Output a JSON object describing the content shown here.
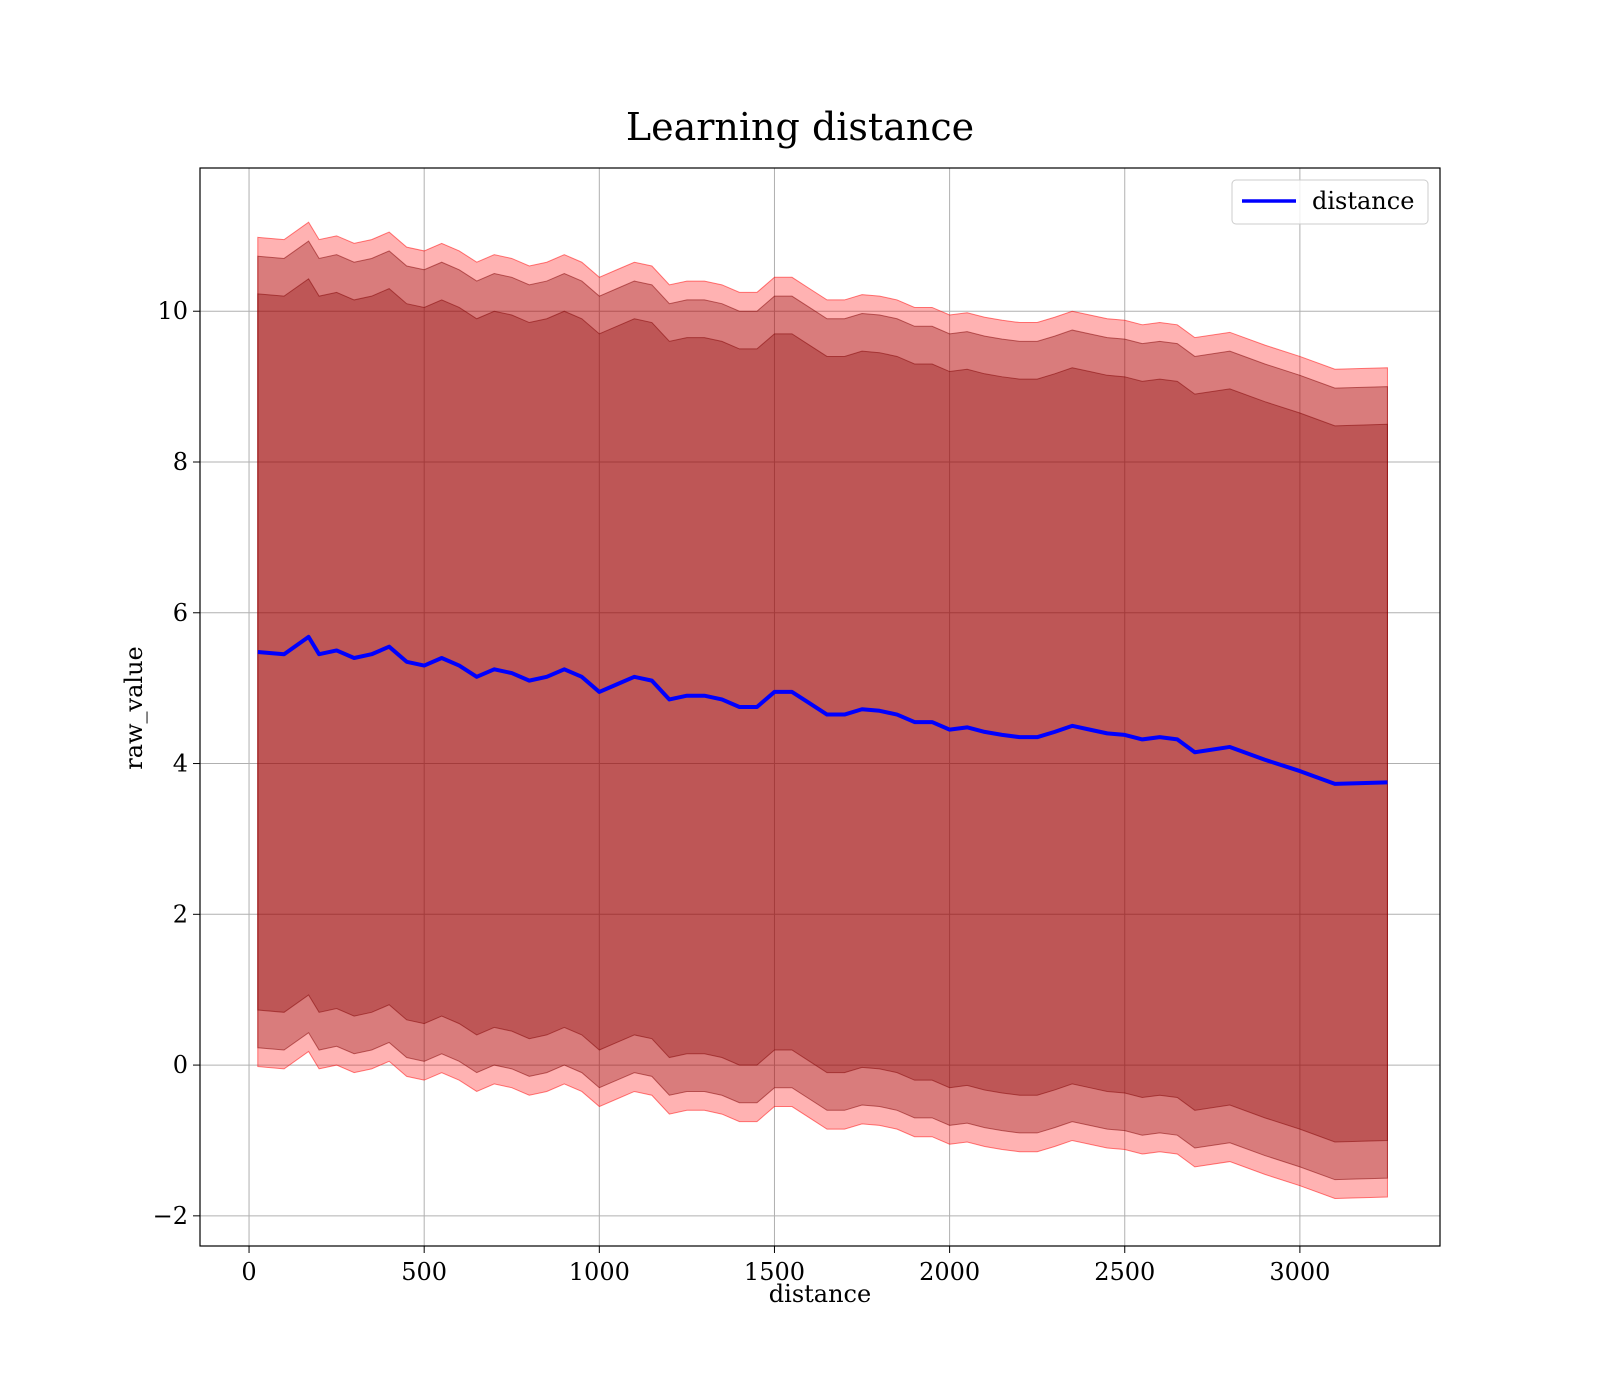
{
  "chart_data": {
    "type": "line",
    "title": "Learning distance",
    "xlabel": "distance",
    "ylabel": "raw_value",
    "xlim": [
      -140,
      3400
    ],
    "ylim": [
      -2.4,
      11.9
    ],
    "xticks": [
      0,
      500,
      1000,
      1500,
      2000,
      2500,
      3000
    ],
    "yticks": [
      -2,
      0,
      2,
      4,
      6,
      8,
      10
    ],
    "ytick_labels": [
      "−2",
      "0",
      "2",
      "4",
      "6",
      "8",
      "10"
    ],
    "grid": true,
    "legend": {
      "position": "top-right",
      "entries": [
        "distance"
      ]
    },
    "colors": {
      "line": "#0000ff",
      "band": "#ff0000",
      "dark_band": "#800000"
    },
    "series": [
      {
        "name": "distance",
        "x": [
          25,
          100,
          170,
          200,
          250,
          300,
          350,
          400,
          450,
          500,
          550,
          600,
          650,
          700,
          750,
          800,
          850,
          900,
          950,
          1000,
          1050,
          1100,
          1150,
          1200,
          1250,
          1300,
          1350,
          1400,
          1450,
          1500,
          1550,
          1600,
          1650,
          1700,
          1750,
          1800,
          1850,
          1900,
          1950,
          2000,
          2050,
          2100,
          2150,
          2200,
          2250,
          2300,
          2350,
          2400,
          2450,
          2500,
          2550,
          2600,
          2650,
          2700,
          2800,
          2900,
          3000,
          3100,
          3250
        ],
        "y": [
          5.48,
          5.45,
          5.68,
          5.45,
          5.5,
          5.4,
          5.45,
          5.55,
          5.35,
          5.3,
          5.4,
          5.3,
          5.15,
          5.25,
          5.2,
          5.1,
          5.15,
          5.25,
          5.15,
          4.95,
          5.05,
          5.15,
          5.1,
          4.85,
          4.9,
          4.9,
          4.85,
          4.75,
          4.75,
          4.95,
          4.95,
          4.8,
          4.65,
          4.65,
          4.72,
          4.7,
          4.65,
          4.55,
          4.55,
          4.45,
          4.48,
          4.42,
          4.38,
          4.35,
          4.35,
          4.42,
          4.5,
          4.45,
          4.4,
          4.38,
          4.32,
          4.35,
          4.32,
          4.15,
          4.22,
          4.05,
          3.9,
          3.73,
          3.75
        ]
      }
    ],
    "bands": [
      {
        "name": "band_outer",
        "color": "#ff0000",
        "opacity": 0.3,
        "half_width": 5.5
      },
      {
        "name": "band_middle",
        "color": "#800000",
        "opacity": 0.3,
        "half_width": 5.25
      },
      {
        "name": "band_inner",
        "color": "#800000",
        "opacity": 0.3,
        "half_width": 4.75
      }
    ]
  }
}
